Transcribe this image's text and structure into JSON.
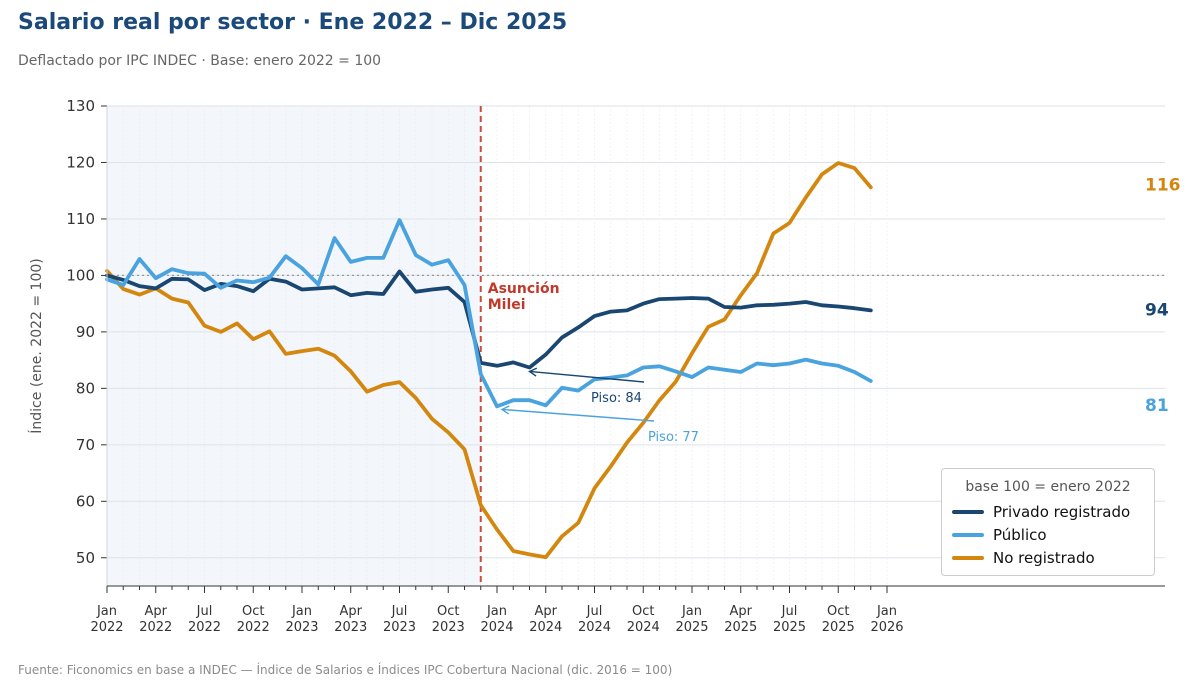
{
  "title": "Salario real por sector · Ene 2022 – Dic 2025",
  "subtitle": "Deflactado por IPC INDEC · Base: enero 2022 = 100",
  "source": "Fuente: Ficonomics en base a INDEC — Índice de Salarios e Índices IPC Cobertura Nacional (dic. 2016 = 100)",
  "colors": {
    "privado": "#1a4672",
    "publico": "#4aa3df",
    "no_registrado": "#d4870f",
    "event_line": "#cc4b3c",
    "event_text": "#c0392b",
    "shade": "#f3f7fb",
    "grid": "#dde3ea"
  },
  "legend": {
    "title": "base 100 = enero 2022",
    "items": [
      "Privado registrado",
      "Público",
      "No registrado"
    ]
  },
  "annotations": {
    "event_label_1": "Asunción",
    "event_label_2": "Milei",
    "event_month": "Dic 2023",
    "piso_privado": "Piso: 84",
    "piso_publico": "Piso: 77",
    "end_privado": "94",
    "end_publico": "81",
    "end_no_registrado": "116",
    "baseline": 100
  },
  "chart_data": {
    "type": "line",
    "title": "Salario real por sector · Ene 2022 – Dic 2025",
    "xlabel": "",
    "ylabel": "Índice (ene. 2022 = 100)",
    "ylim": [
      45,
      130
    ],
    "yticks": [
      50,
      60,
      70,
      80,
      90,
      100,
      110,
      120,
      130
    ],
    "x_start": "Ene 2022",
    "x_end": "Dic 2025",
    "xtick_labels": [
      [
        "Jan",
        "2022"
      ],
      [
        "Apr",
        "2022"
      ],
      [
        "Jul",
        "2022"
      ],
      [
        "Oct",
        "2022"
      ],
      [
        "Jan",
        "2023"
      ],
      [
        "Apr",
        "2023"
      ],
      [
        "Jul",
        "2023"
      ],
      [
        "Oct",
        "2023"
      ],
      [
        "Jan",
        "2024"
      ],
      [
        "Apr",
        "2024"
      ],
      [
        "Jul",
        "2024"
      ],
      [
        "Oct",
        "2024"
      ],
      [
        "Jan",
        "2025"
      ],
      [
        "Apr",
        "2025"
      ],
      [
        "Jul",
        "2025"
      ],
      [
        "Oct",
        "2025"
      ],
      [
        "Jan",
        "2026"
      ]
    ],
    "grid": true,
    "legend_position": "bottom-right",
    "series": [
      {
        "name": "Privado registrado",
        "values": [
          100.0,
          99.2,
          98.1,
          97.7,
          99.4,
          99.3,
          97.4,
          98.5,
          98.1,
          97.2,
          99.4,
          98.9,
          97.5,
          97.7,
          97.9,
          96.5,
          96.9,
          96.7,
          100.7,
          97.1,
          97.5,
          97.8,
          95.3,
          84.5,
          84.0,
          84.6,
          83.7,
          86.0,
          89.0,
          90.8,
          92.8,
          93.6,
          93.8,
          95.0,
          95.8,
          95.9,
          96.0,
          95.9,
          94.4,
          94.3,
          94.7,
          94.8,
          95.0,
          95.3,
          94.7,
          94.5,
          94.2,
          93.8
        ]
      },
      {
        "name": "Público",
        "values": [
          99.3,
          98.3,
          102.9,
          99.5,
          101.1,
          100.4,
          100.3,
          97.8,
          99.1,
          98.8,
          99.6,
          103.4,
          101.3,
          98.4,
          106.6,
          102.4,
          103.1,
          103.1,
          109.8,
          103.6,
          101.9,
          102.7,
          98.3,
          82.5,
          76.8,
          77.9,
          77.9,
          77.0,
          80.1,
          79.6,
          81.6,
          81.9,
          82.3,
          83.7,
          83.9,
          83.0,
          82.0,
          83.7,
          83.3,
          82.9,
          84.4,
          84.1,
          84.4,
          85.1,
          84.4,
          84.0,
          82.9,
          81.3
        ]
      },
      {
        "name": "No registrado",
        "values": [
          100.8,
          97.6,
          96.6,
          97.7,
          95.9,
          95.2,
          91.1,
          90.0,
          91.5,
          88.7,
          90.1,
          86.1,
          86.6,
          87.0,
          85.8,
          83.0,
          79.4,
          80.6,
          81.1,
          78.3,
          74.6,
          72.2,
          69.2,
          59.3,
          55.0,
          51.2,
          50.6,
          50.1,
          53.8,
          56.2,
          62.3,
          66.2,
          70.4,
          73.9,
          77.9,
          81.2,
          86.2,
          90.9,
          92.2,
          96.5,
          100.4,
          107.4,
          109.3,
          113.8,
          117.9,
          119.9,
          119.0,
          115.6
        ]
      }
    ]
  }
}
